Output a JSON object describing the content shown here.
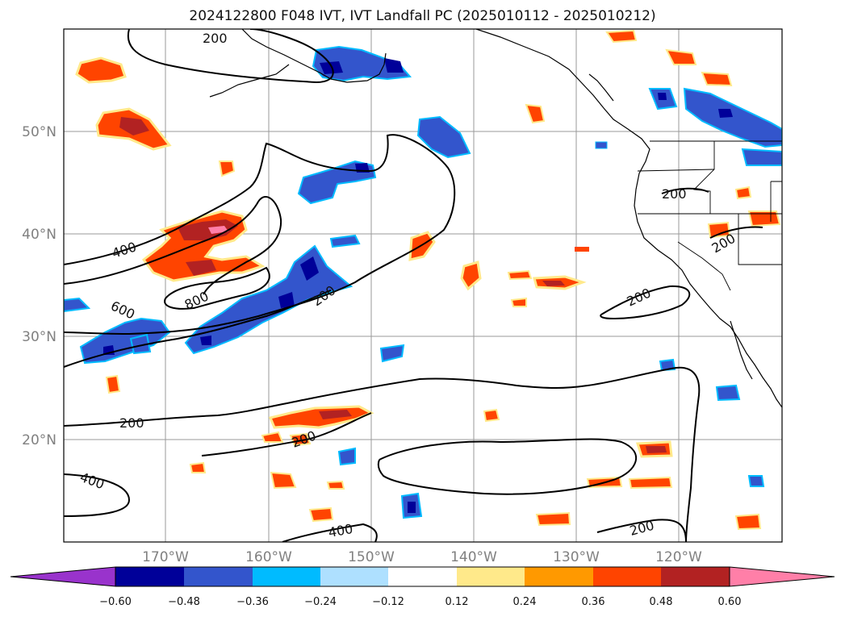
{
  "title": "2024122800 F048 IVT, IVT Landfall PC (2025010112 - 2025010212)",
  "lat_labels": [
    "50°N",
    "40°N",
    "30°N",
    "20°N"
  ],
  "lon_labels": [
    "170°W",
    "160°W",
    "150°W",
    "140°W",
    "130°W",
    "120°W"
  ],
  "contour_labels": [
    "200",
    "400",
    "600",
    "800",
    "200",
    "200",
    "200",
    "200",
    "400",
    "200",
    "400",
    "200",
    "200"
  ],
  "colorbar": {
    "colors": [
      "#9933cc",
      "#000099",
      "#3355cc",
      "#00bbff",
      "#aee0ff",
      "#ffffff",
      "#ffe98a",
      "#ff9900",
      "#ff4400",
      "#b22222",
      "#ff7fa8"
    ],
    "tick_labels": [
      "−0.60",
      "−0.48",
      "−0.36",
      "−0.24",
      "−0.12",
      "0.12",
      "0.24",
      "0.36",
      "0.48",
      "0.60"
    ]
  }
}
